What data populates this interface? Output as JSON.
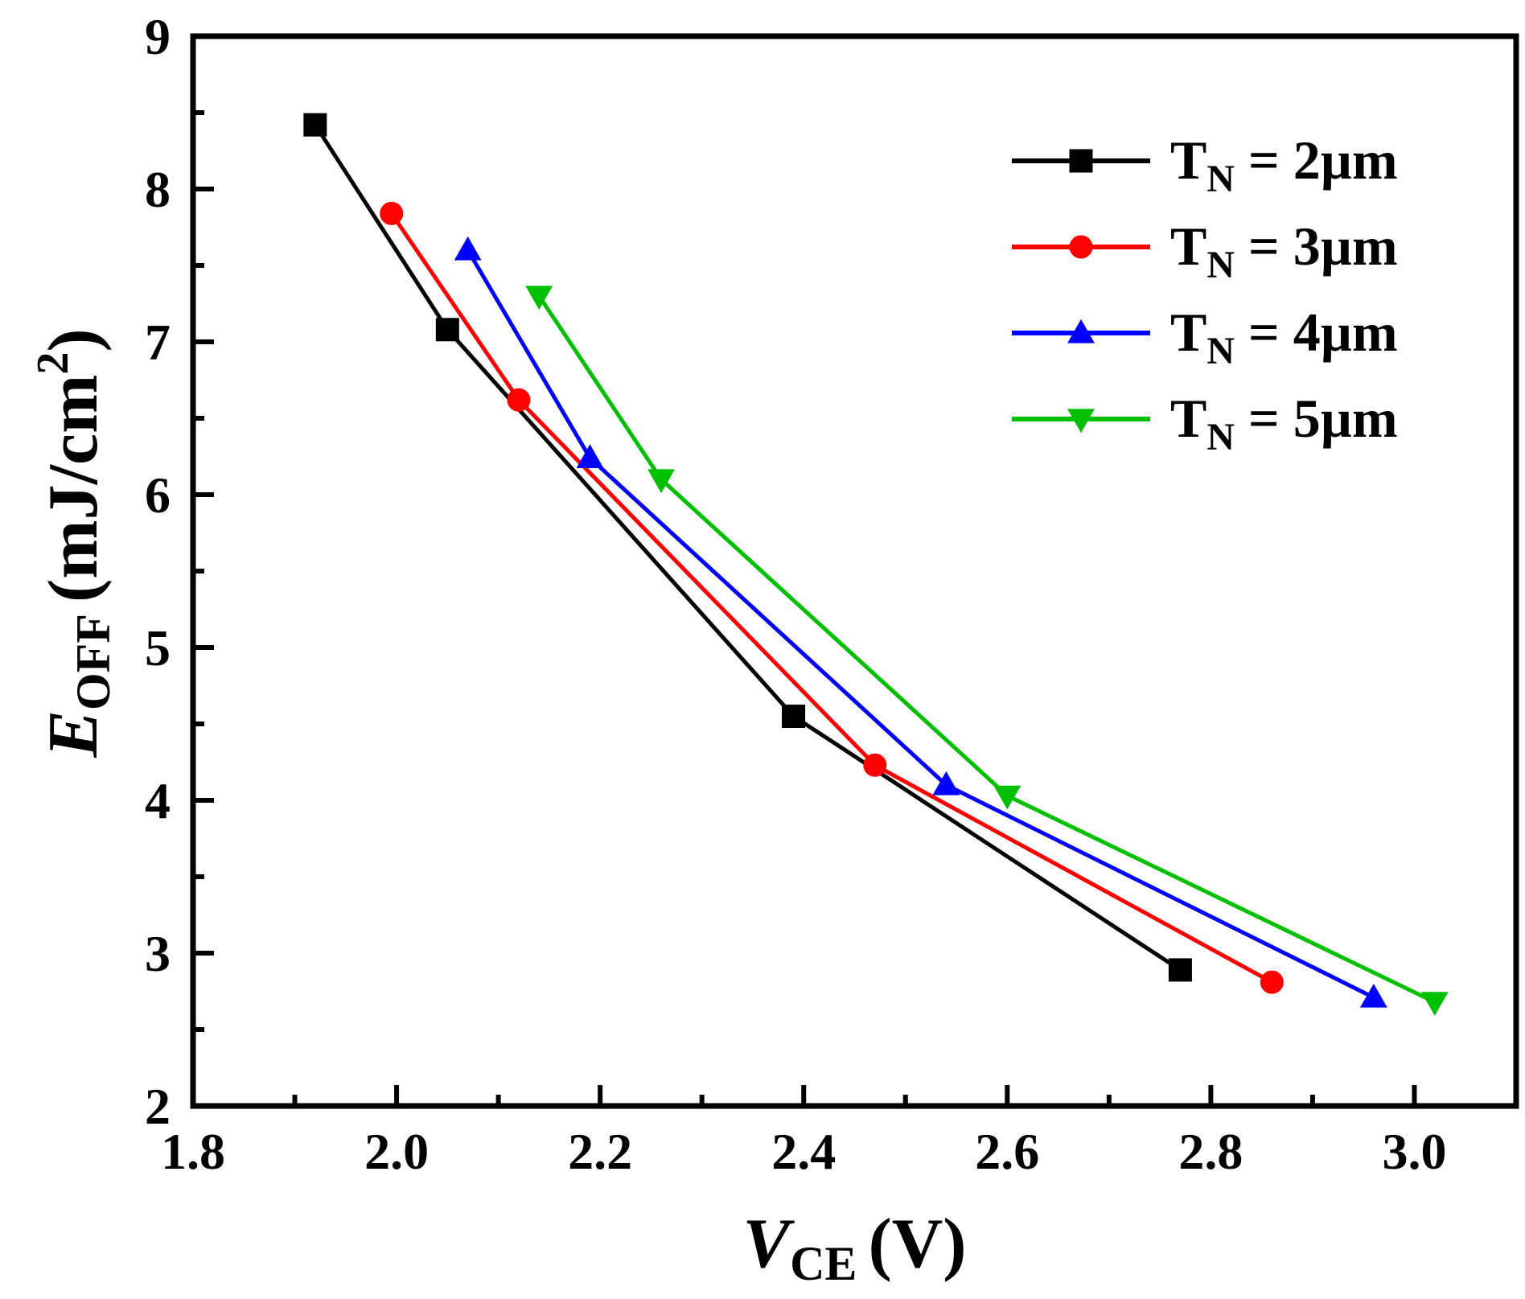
{
  "chart_data": {
    "type": "line",
    "xlabel": {
      "main": "V",
      "sub": "CE",
      "unit": "(V)"
    },
    "ylabel": {
      "main": "E",
      "sub": "OFF",
      "unit_pre": "(mJ/cm",
      "unit_sup": "2",
      "unit_post": ")"
    },
    "xlim": [
      1.8,
      3.1
    ],
    "ylim": [
      2,
      9
    ],
    "xticks": [
      "1.8",
      "2.0",
      "2.2",
      "2.4",
      "2.6",
      "2.8",
      "3.0"
    ],
    "yticks": [
      "2",
      "3",
      "4",
      "5",
      "6",
      "7",
      "8",
      "9"
    ],
    "legend_position": "top-right",
    "series": [
      {
        "name": "T_N = 2µm",
        "label_main": "T",
        "label_sub": "N",
        "label_rest": " = 2µm",
        "color": "#000000",
        "marker": "square",
        "x": [
          1.92,
          2.05,
          2.39,
          2.77
        ],
        "y": [
          8.42,
          7.08,
          4.55,
          2.89
        ]
      },
      {
        "name": "T_N = 3µm",
        "label_main": "T",
        "label_sub": "N",
        "label_rest": " = 3µm",
        "color": "#ff0000",
        "marker": "circle",
        "x": [
          1.995,
          2.12,
          2.47,
          2.86
        ],
        "y": [
          7.84,
          6.62,
          4.23,
          2.81
        ]
      },
      {
        "name": "T_N = 4µm",
        "label_main": "T",
        "label_sub": "N",
        "label_rest": " = 4µm",
        "color": "#0000ff",
        "marker": "triangle-up",
        "x": [
          2.07,
          2.19,
          2.54,
          2.96
        ],
        "y": [
          7.6,
          6.24,
          4.1,
          2.71
        ]
      },
      {
        "name": "T_N = 5µm",
        "label_main": "T",
        "label_sub": "N",
        "label_rest": " = 5µm",
        "color": "#00c000",
        "marker": "triangle-down",
        "x": [
          2.14,
          2.26,
          2.6,
          3.02
        ],
        "y": [
          7.3,
          6.1,
          4.03,
          2.68
        ]
      }
    ]
  }
}
